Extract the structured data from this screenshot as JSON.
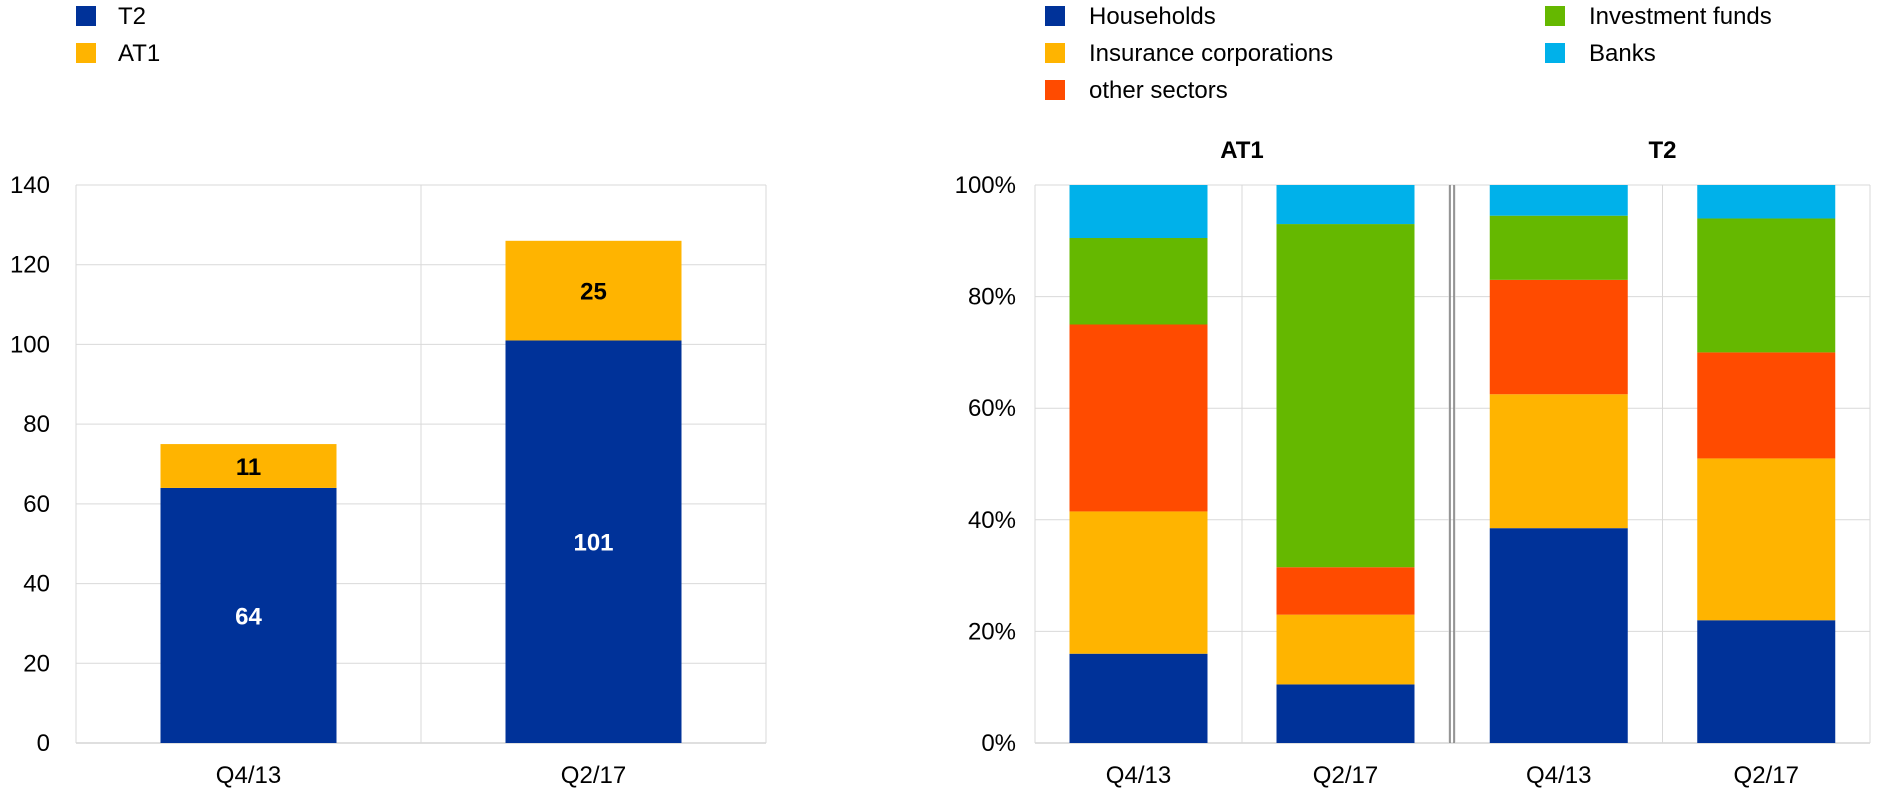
{
  "chart_data": [
    {
      "type": "bar",
      "stacked": true,
      "categories": [
        "Q4/13",
        "Q2/17"
      ],
      "series": [
        {
          "name": "T2",
          "color": "#003299",
          "values": [
            64,
            101
          ],
          "value_labels": [
            "64",
            "101"
          ],
          "label_color": "#ffffff"
        },
        {
          "name": "AT1",
          "color": "#FFB400",
          "values": [
            11,
            25
          ],
          "value_labels": [
            "11",
            "25"
          ],
          "label_color": "#000000"
        }
      ],
      "ylim": [
        0,
        140
      ],
      "yticks": [
        0,
        20,
        40,
        60,
        80,
        100,
        120,
        140
      ],
      "ytick_labels": [
        "0",
        "20",
        "40",
        "60",
        "80",
        "100",
        "120",
        "140"
      ],
      "grid": true,
      "legend_position": "top-left"
    },
    {
      "type": "bar",
      "stacked": true,
      "percent": true,
      "groups": [
        {
          "title": "AT1",
          "categories": [
            "Q4/13",
            "Q2/17"
          ]
        },
        {
          "title": "T2",
          "categories": [
            "Q4/13",
            "Q2/17"
          ]
        }
      ],
      "series": [
        {
          "name": "Households",
          "color": "#003299",
          "values": [
            16,
            10.5,
            38.5,
            22
          ]
        },
        {
          "name": "Insurance corporations",
          "color": "#FFB400",
          "values": [
            25.5,
            12.5,
            24,
            29
          ]
        },
        {
          "name": "other sectors",
          "color": "#FF4B00",
          "values": [
            33.5,
            8.5,
            20.5,
            19
          ]
        },
        {
          "name": "Investment funds",
          "color": "#65B800",
          "values": [
            15.5,
            61.5,
            11.5,
            24
          ]
        },
        {
          "name": "Banks",
          "color": "#00B1EA",
          "values": [
            9.5,
            7,
            5.5,
            6
          ]
        }
      ],
      "ylim": [
        0,
        100
      ],
      "yticks": [
        0,
        20,
        40,
        60,
        80,
        100
      ],
      "ytick_labels": [
        "0%",
        "20%",
        "40%",
        "60%",
        "80%",
        "100%"
      ],
      "grid": true,
      "legend_position": "top"
    }
  ]
}
